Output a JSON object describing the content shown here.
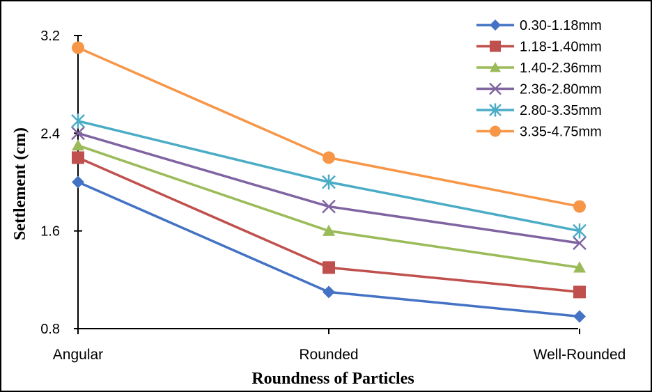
{
  "chart_data": {
    "type": "line",
    "categories": [
      "Angular",
      "Rounded",
      "Well-Rounded"
    ],
    "xlabel": "Roundness of Particles",
    "ylabel": "Settlement (cm)",
    "ylim": [
      0.8,
      3.2
    ],
    "yticks": [
      "0.8",
      "1.6",
      "2.4",
      "3.2"
    ],
    "grid": false,
    "legend_position": "top-right",
    "series": [
      {
        "name": "0.30-1.18mm",
        "values": [
          2.0,
          1.1,
          0.9
        ],
        "color": "#4472C4",
        "marker": "diamond"
      },
      {
        "name": "1.18-1.40mm",
        "values": [
          2.2,
          1.3,
          1.1
        ],
        "color": "#C0504D",
        "marker": "square"
      },
      {
        "name": "1.40-2.36mm",
        "values": [
          2.3,
          1.6,
          1.3
        ],
        "color": "#9BBB59",
        "marker": "triangle"
      },
      {
        "name": "2.36-2.80mm",
        "values": [
          2.4,
          1.8,
          1.5
        ],
        "color": "#8064A2",
        "marker": "x"
      },
      {
        "name": "2.80-3.35mm",
        "values": [
          2.5,
          2.0,
          1.6
        ],
        "color": "#4BACC6",
        "marker": "star"
      },
      {
        "name": "3.35-4.75mm",
        "values": [
          3.1,
          2.2,
          1.8
        ],
        "color": "#F79646",
        "marker": "circle"
      }
    ]
  }
}
